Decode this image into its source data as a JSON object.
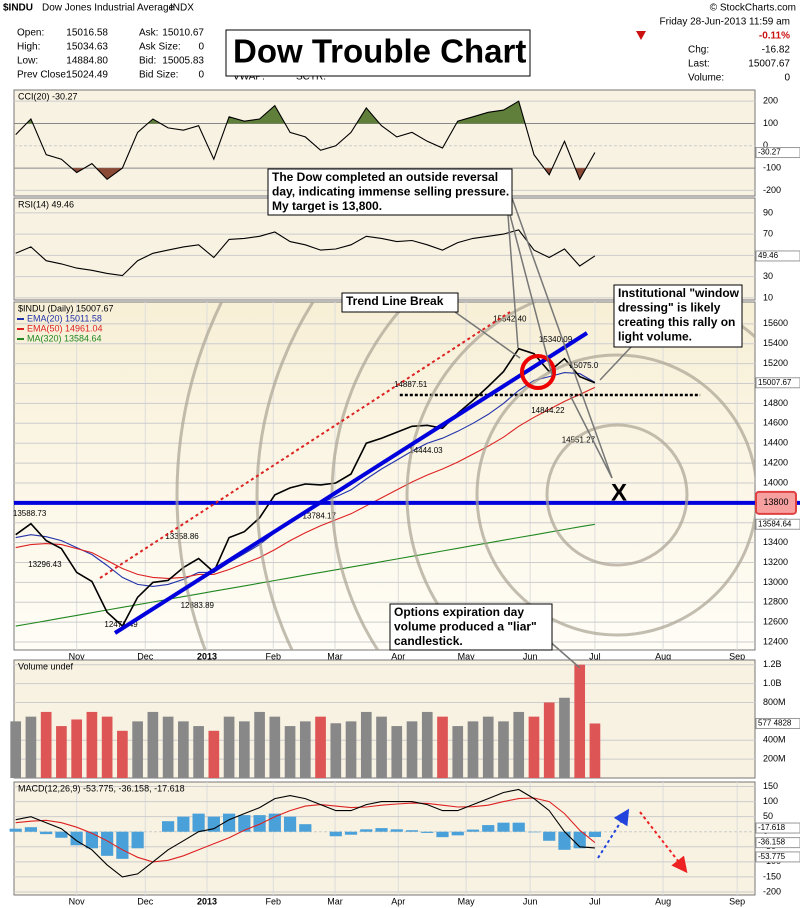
{
  "header": {
    "symbol": "$INDU",
    "name": "Dow Jones Industrial Average",
    "exchange": "INDX",
    "copyright": "© StockCharts.com",
    "date": "Friday 28-Jun-2013 11:59 am",
    "change_pct": "-0.11%",
    "left_fields": [
      {
        "label": "Open:",
        "value": "15016.58"
      },
      {
        "label": "High:",
        "value": "15034.63"
      },
      {
        "label": "Low:",
        "value": "14884.80"
      },
      {
        "label": "Prev Close:",
        "value": "15024.49"
      }
    ],
    "mid_fields": [
      {
        "label": "Ask:",
        "value": "15010.67"
      },
      {
        "label": "Ask Size:",
        "value": "0"
      },
      {
        "label": "Bid:",
        "value": "15005.83"
      },
      {
        "label": "Bid Size:",
        "value": "0"
      }
    ],
    "right_fields": [
      {
        "label": "Chg:",
        "value": "-16.82"
      },
      {
        "label": "Last:",
        "value": "15007.67"
      },
      {
        "label": "Volume:",
        "value": "0"
      }
    ],
    "extra": [
      "VWAP:",
      "SCTR:"
    ]
  },
  "annotations": {
    "headline": "Dow Trouble Chart",
    "reversal": [
      "The Dow completed an outside reversal",
      "day, indicating immense selling pressure.",
      "My target is 13,800."
    ],
    "trend_break": "Trend Line Break",
    "window": [
      "Institutional \"window",
      "dressing\" is likely",
      "creating this rally on",
      "light volume."
    ],
    "options": [
      "Options expiration day",
      "volume produced a \"liar\"",
      "candlestick."
    ],
    "target_mark": "X"
  },
  "chart_data": [
    {
      "type": "line",
      "title": "CCI(20) -30.27",
      "x": [
        0,
        1,
        2,
        3,
        4,
        5,
        6,
        7,
        8,
        9,
        10,
        11,
        12,
        13,
        14,
        15,
        16,
        17,
        18,
        19,
        20,
        21,
        22,
        23,
        24,
        25,
        26,
        27,
        28,
        29,
        30,
        31,
        32,
        33,
        34,
        35,
        36,
        37,
        38
      ],
      "xlim": [
        -0.11,
        48.5
      ],
      "ylim": [
        -225,
        250
      ],
      "yticks": [
        -200,
        -100,
        0,
        100,
        200
      ],
      "grid": true,
      "series": [
        {
          "color": "#000000",
          "values": [
            50,
            120,
            -40,
            -60,
            -120,
            -80,
            -150,
            -100,
            60,
            120,
            80,
            70,
            90,
            -60,
            130,
            110,
            120,
            180,
            60,
            40,
            -20,
            0,
            60,
            170,
            90,
            40,
            60,
            20,
            -10,
            110,
            130,
            150,
            160,
            200,
            -40,
            -130,
            20,
            -150,
            -30.27
          ]
        }
      ],
      "upper_fill": "#5f7f3a",
      "lower_fill": "#8a4a36",
      "bands": [
        -100,
        100
      ],
      "right_labels": [
        {
          "value": -30.27,
          "label": "-30.27"
        }
      ]
    },
    {
      "type": "line",
      "title": "RSI(14) 49.46",
      "x": [
        0,
        1,
        2,
        3,
        4,
        5,
        6,
        7,
        8,
        9,
        10,
        11,
        12,
        13,
        14,
        15,
        16,
        17,
        18,
        19,
        20,
        21,
        22,
        23,
        24,
        25,
        26,
        27,
        28,
        29,
        30,
        31,
        32,
        33,
        34,
        35,
        36,
        37,
        38
      ],
      "xlim": [
        -0.11,
        48.5
      ],
      "ylim": [
        8,
        104
      ],
      "yticks": [
        10,
        30,
        50,
        70,
        90
      ],
      "grid": true,
      "series": [
        {
          "color": "#000000",
          "values": [
            52,
            58,
            45,
            42,
            38,
            36,
            33,
            31,
            45,
            52,
            55,
            58,
            60,
            48,
            65,
            66,
            68,
            72,
            63,
            60,
            55,
            56,
            60,
            68,
            66,
            63,
            64,
            60,
            55,
            62,
            66,
            68,
            70,
            74,
            55,
            48,
            56,
            40,
            49.46
          ]
        }
      ],
      "right_labels": [
        {
          "value": 49.46,
          "label": "49.46"
        }
      ]
    },
    {
      "type": "line",
      "title": "$INDU (Daily) 15007.67",
      "x": [
        0,
        1,
        2,
        3,
        4,
        5,
        6,
        7,
        8,
        9,
        10,
        11,
        12,
        13,
        14,
        15,
        16,
        17,
        18,
        19,
        20,
        21,
        22,
        23,
        24,
        25,
        26,
        27,
        28,
        29,
        30,
        31,
        32,
        33,
        34,
        35,
        36,
        37,
        38
      ],
      "xlim": [
        -0.11,
        48.5
      ],
      "ylim": [
        12320,
        15820
      ],
      "yticks": [
        12400,
        12600,
        12800,
        13000,
        13200,
        13400,
        13600,
        13800,
        14000,
        14200,
        14400,
        14600,
        14800,
        15000,
        15200,
        15400,
        15600
      ],
      "xticks": [
        {
          "value": 4.0,
          "label": "Nov"
        },
        {
          "value": 8.5,
          "label": "Dec"
        },
        {
          "value": 12.55,
          "label": "2013"
        },
        {
          "value": 16.9,
          "label": "Feb"
        },
        {
          "value": 20.95,
          "label": "Mar"
        },
        {
          "value": 25.1,
          "label": "Apr"
        },
        {
          "value": 29.55,
          "label": "May"
        },
        {
          "value": 33.75,
          "label": "Jun"
        },
        {
          "value": 38.0,
          "label": "Jul"
        },
        {
          "value": 42.47,
          "label": "Aug"
        },
        {
          "value": 47.33,
          "label": "Sep"
        }
      ],
      "grid": true,
      "series": [
        {
          "name": "EMA(20) 15011.58",
          "color": "#2233aa",
          "values": [
            13450,
            13480,
            13460,
            13420,
            13350,
            13280,
            13170,
            13050,
            12980,
            12960,
            12980,
            13030,
            13100,
            13100,
            13200,
            13290,
            13380,
            13500,
            13620,
            13720,
            13800,
            13860,
            13930,
            14040,
            14140,
            14230,
            14320,
            14400,
            14450,
            14520,
            14600,
            14690,
            14800,
            14930,
            15030,
            15070,
            15110,
            15100,
            15011.58
          ]
        },
        {
          "name": "EMA(50) 14961.04",
          "color": "#dd2222",
          "values": [
            13350,
            13380,
            13390,
            13380,
            13340,
            13300,
            13220,
            13140,
            13080,
            13050,
            13040,
            13050,
            13080,
            13080,
            13130,
            13190,
            13250,
            13330,
            13420,
            13500,
            13570,
            13630,
            13690,
            13770,
            13850,
            13930,
            14010,
            14080,
            14140,
            14210,
            14290,
            14370,
            14460,
            14570,
            14660,
            14740,
            14820,
            14890,
            14961.04
          ]
        },
        {
          "name": "MA(320) 13584.64",
          "color": "#228822",
          "values": [
            12560,
            12587,
            12614,
            12641,
            12668,
            12695,
            12722,
            12749,
            12776,
            12803,
            12830,
            12857,
            12884,
            12911,
            12938,
            12965,
            12992,
            13019,
            13046,
            13073,
            13100,
            13127,
            13154,
            13181,
            13208,
            13235,
            13262,
            13289,
            13316,
            13343,
            13370,
            13397,
            13424,
            13451,
            13478,
            13505,
            13532,
            13559,
            13584.64
          ]
        },
        {
          "color": "#000000",
          "values": [
            13480,
            13590,
            13420,
            13340,
            13100,
            13010,
            12700,
            12560,
            12850,
            13000,
            13020,
            13150,
            13240,
            13104,
            13450,
            13510,
            13650,
            13880,
            13950,
            13990,
            13980,
            14000,
            14090,
            14400,
            14450,
            14510,
            14570,
            14580,
            14550,
            14700,
            14830,
            14970,
            15120,
            15350,
            15300,
            15120,
            15250,
            15070,
            15007.67
          ]
        }
      ],
      "reference_lines": [
        {
          "value": 13800,
          "label": "13800",
          "color": "#0000dd"
        },
        {
          "value": 14885,
          "color": "#000000",
          "dashed": true,
          "xrange": [
            25.2,
            44.9
          ]
        }
      ],
      "point_labels": [
        {
          "x": 1,
          "value": 13588.73,
          "label": "13588.73"
        },
        {
          "x": 2,
          "value": 13296.43,
          "label": "13296.43"
        },
        {
          "x": 7,
          "value": 12471.49,
          "label": "12471.49"
        },
        {
          "x": 11,
          "value": 13358.86,
          "label": "13358.86"
        },
        {
          "x": 12,
          "value": 12883.89,
          "label": "12883.89"
        },
        {
          "x": 20,
          "value": 13784.17,
          "label": "13784.17"
        },
        {
          "x": 26,
          "value": 14887.51,
          "label": "14887.51"
        },
        {
          "x": 27,
          "value": 14444.03,
          "label": "14444.03"
        },
        {
          "x": 32.5,
          "value": 15542.4,
          "label": "15542.40"
        },
        {
          "x": 35,
          "value": 14844.22,
          "label": "14844.22"
        },
        {
          "x": 35.5,
          "value": 15340.09,
          "label": "15340.09"
        },
        {
          "x": 37.5,
          "value": 15075.0,
          "label": "15075.0"
        },
        {
          "x": 37,
          "value": 14551.27,
          "label": "14551.27"
        }
      ],
      "right_labels": [
        {
          "value": 15007.67,
          "label": "15007.67"
        },
        {
          "value": 13584.64,
          "label": "13584.64"
        }
      ]
    },
    {
      "type": "bar",
      "title": "Volume undef",
      "x": [
        0,
        1,
        2,
        3,
        4,
        5,
        6,
        7,
        8,
        9,
        10,
        11,
        12,
        13,
        14,
        15,
        16,
        17,
        18,
        19,
        20,
        21,
        22,
        23,
        24,
        25,
        26,
        27,
        28,
        29,
        30,
        31,
        32,
        33,
        34,
        35,
        36,
        37,
        38
      ],
      "xlim": [
        -0.11,
        48.5
      ],
      "ylim": [
        0,
        1250000000
      ],
      "yticks": [
        {
          "value": 200000000,
          "label": "200M"
        },
        {
          "value": 400000000,
          "label": "400M"
        },
        {
          "value": 800000000,
          "label": "800M"
        },
        {
          "value": 1000000000,
          "label": "1.0B"
        },
        {
          "value": 1200000000,
          "label": "1.2B"
        }
      ],
      "grid": true,
      "up_color": "#888888",
      "down_color": "#dd5555",
      "series": [
        {
          "values": [
            600000000,
            650000000,
            700000000,
            550000000,
            620000000,
            700000000,
            650000000,
            500000000,
            600000000,
            700000000,
            650000000,
            600000000,
            550000000,
            500000000,
            650000000,
            600000000,
            700000000,
            650000000,
            550000000,
            600000000,
            650000000,
            580000000,
            600000000,
            700000000,
            650000000,
            550000000,
            600000000,
            700000000,
            650000000,
            550000000,
            600000000,
            650000000,
            600000000,
            700000000,
            650000000,
            800000000,
            850000000,
            1200000000,
            577482848
          ]
        }
      ],
      "right_labels": [
        {
          "value": 577482848,
          "label": "577 4828"
        }
      ]
    },
    {
      "type": "line",
      "title": "MACD(12,26,9) -53.775, -36.158, -17.618",
      "x": [
        0,
        1,
        2,
        3,
        4,
        5,
        6,
        7,
        8,
        9,
        10,
        11,
        12,
        13,
        14,
        15,
        16,
        17,
        18,
        19,
        20,
        21,
        22,
        23,
        24,
        25,
        26,
        27,
        28,
        29,
        30,
        31,
        32,
        33,
        34,
        35,
        36,
        37,
        38
      ],
      "xlim": [
        -0.11,
        48.5
      ],
      "ylim": [
        -210,
        165
      ],
      "yticks": [
        -200,
        -150,
        -100,
        -50,
        0,
        50,
        100,
        150
      ],
      "xticks": [
        {
          "value": 4.0,
          "label": "Nov"
        },
        {
          "value": 8.5,
          "label": "Dec"
        },
        {
          "value": 12.55,
          "label": "2013"
        },
        {
          "value": 16.9,
          "label": "Feb"
        },
        {
          "value": 20.95,
          "label": "Mar"
        },
        {
          "value": 25.1,
          "label": "Apr"
        },
        {
          "value": 29.55,
          "label": "May"
        },
        {
          "value": 33.75,
          "label": "Jun"
        },
        {
          "value": 38.0,
          "label": "Jul"
        },
        {
          "value": 42.47,
          "label": "Aug"
        },
        {
          "value": 47.33,
          "label": "Sep"
        }
      ],
      "grid": true,
      "series": [
        {
          "color": "#4aa0d8",
          "style": "bar",
          "values": [
            10,
            15,
            -8,
            -20,
            -45,
            -55,
            -80,
            -90,
            -55,
            0,
            35,
            50,
            60,
            50,
            60,
            55,
            55,
            60,
            50,
            25,
            0,
            -15,
            -10,
            8,
            12,
            8,
            5,
            -4,
            -18,
            -12,
            7,
            22,
            30,
            30,
            -2,
            -30,
            -60,
            -55,
            -17.618
          ]
        },
        {
          "color": "#dd2222",
          "values": [
            30,
            35,
            38,
            30,
            15,
            -5,
            -30,
            -60,
            -85,
            -100,
            -95,
            -80,
            -60,
            -40,
            -20,
            5,
            25,
            50,
            70,
            85,
            90,
            85,
            80,
            82,
            88,
            92,
            95,
            94,
            88,
            82,
            83,
            88,
            100,
            110,
            112,
            100,
            60,
            5,
            -36.158
          ]
        },
        {
          "color": "#000000",
          "values": [
            40,
            50,
            30,
            10,
            -30,
            -60,
            -110,
            -150,
            -140,
            -100,
            -60,
            -30,
            0,
            10,
            40,
            60,
            80,
            110,
            120,
            110,
            90,
            70,
            70,
            90,
            100,
            100,
            100,
            90,
            70,
            70,
            90,
            110,
            130,
            140,
            110,
            70,
            0,
            -50,
            -53.775
          ]
        }
      ],
      "right_labels": [
        {
          "value": -17.618,
          "label": "-17.618"
        },
        {
          "value": -36.158,
          "label": "-36.158"
        },
        {
          "value": -53.775,
          "label": "-53.775"
        }
      ]
    }
  ]
}
